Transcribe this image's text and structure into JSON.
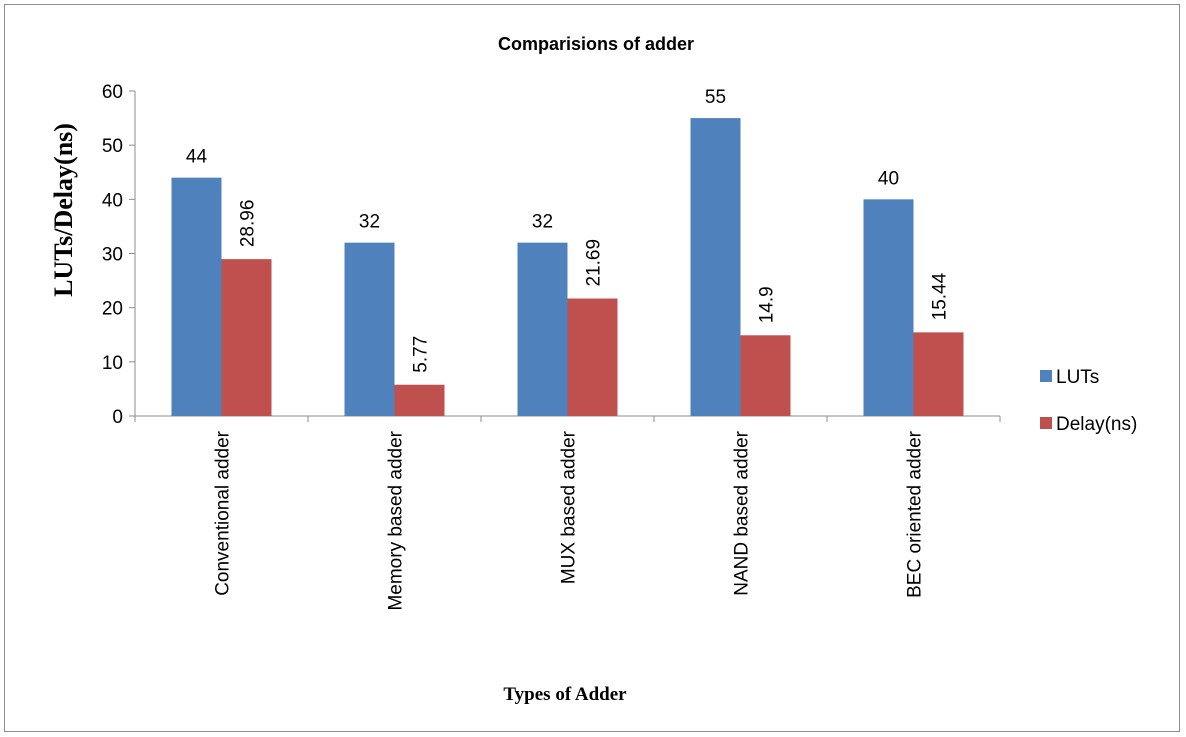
{
  "chart_data": {
    "type": "bar",
    "title": "Comparisions of adder",
    "xlabel": "Types of Adder",
    "ylabel": "LUTs/Delay(ns)",
    "ylim": [
      0,
      60
    ],
    "yticks": [
      0,
      10,
      20,
      30,
      40,
      50,
      60
    ],
    "grid": false,
    "legend_position": "right",
    "categories": [
      "Conventional adder",
      "Memory based adder",
      "MUX based adder",
      "NAND based adder",
      "BEC oriented adder"
    ],
    "series": [
      {
        "name": "LUTs",
        "color": "#4f81bd",
        "values": [
          44,
          32,
          32,
          55,
          40
        ],
        "labels": [
          "44",
          "32",
          "32",
          "55",
          "40"
        ]
      },
      {
        "name": "Delay(ns)",
        "color": "#c0504d",
        "values": [
          28.96,
          5.77,
          21.69,
          14.9,
          15.44
        ],
        "labels": [
          "28.96",
          "5.77",
          "21.69",
          "14.9",
          "15.44"
        ]
      }
    ]
  }
}
